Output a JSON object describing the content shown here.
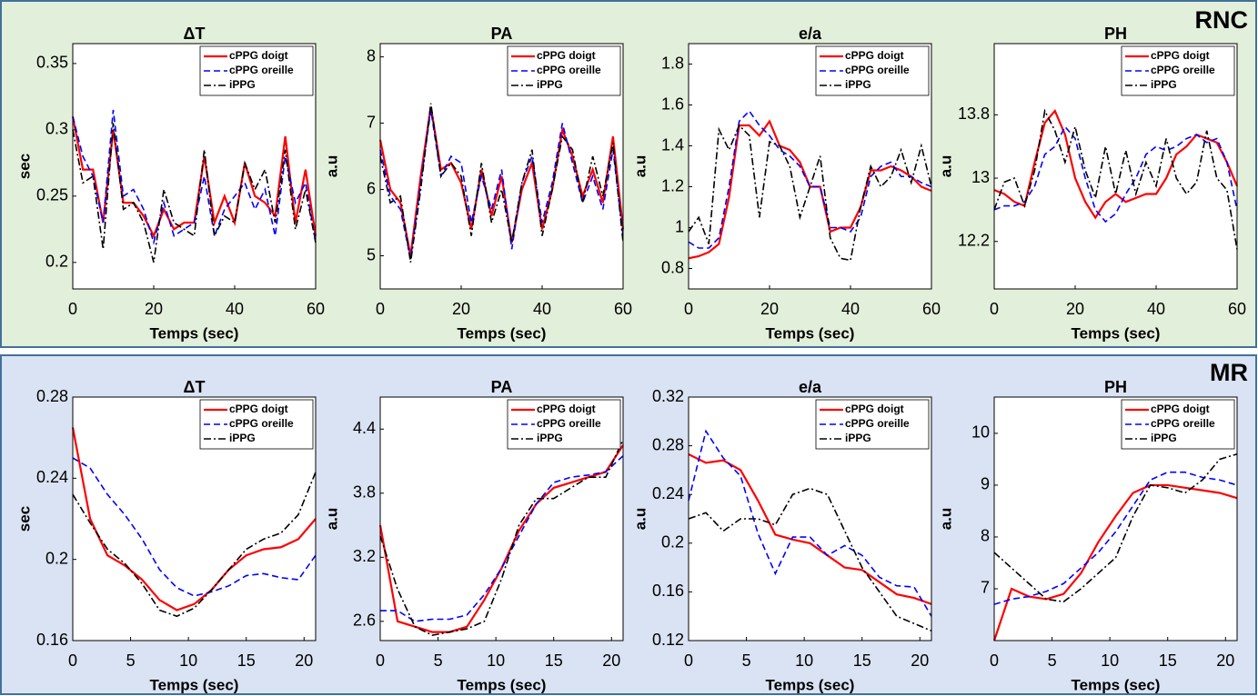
{
  "panels": [
    {
      "label": "RNC"
    },
    {
      "label": "MR"
    }
  ],
  "chart_data": [
    {
      "type": "line",
      "title": "ΔT",
      "x_label": "Temps (sec)",
      "y_label": "sec",
      "legend": "upper right",
      "x": [
        0,
        2.5,
        5,
        7.5,
        10,
        12.5,
        15,
        17.5,
        20,
        22.5,
        25,
        27.5,
        30,
        32.5,
        35,
        37.5,
        40,
        42.5,
        45,
        47.5,
        50,
        52.5,
        55,
        57.5,
        60
      ],
      "xlim": [
        0,
        60
      ],
      "xticks": [
        0,
        20,
        40,
        60
      ],
      "ylim": [
        0.18,
        0.365
      ],
      "yticks": [
        0.2,
        0.25,
        0.3,
        0.35
      ],
      "series": [
        {
          "name": "cPPG doigt",
          "color": "#ff0000",
          "style": "solid",
          "values": [
            0.31,
            0.27,
            0.27,
            0.23,
            0.3,
            0.245,
            0.245,
            0.235,
            0.22,
            0.24,
            0.225,
            0.23,
            0.23,
            0.28,
            0.23,
            0.25,
            0.23,
            0.275,
            0.25,
            0.245,
            0.235,
            0.295,
            0.23,
            0.27,
            0.22
          ]
        },
        {
          "name": "cPPG oreille",
          "color": "#0000ff",
          "style": "dashed",
          "values": [
            0.31,
            0.28,
            0.265,
            0.23,
            0.315,
            0.25,
            0.255,
            0.24,
            0.215,
            0.245,
            0.22,
            0.225,
            0.23,
            0.265,
            0.22,
            0.24,
            0.25,
            0.26,
            0.24,
            0.255,
            0.22,
            0.28,
            0.245,
            0.26,
            0.215
          ]
        },
        {
          "name": "iPPG",
          "color": "#000000",
          "style": "dashdot",
          "values": [
            0.3,
            0.26,
            0.265,
            0.21,
            0.305,
            0.24,
            0.245,
            0.23,
            0.2,
            0.255,
            0.23,
            0.225,
            0.22,
            0.285,
            0.22,
            0.235,
            0.23,
            0.275,
            0.255,
            0.27,
            0.23,
            0.285,
            0.225,
            0.255,
            0.215
          ]
        }
      ]
    },
    {
      "type": "line",
      "title": "PA",
      "x_label": "Temps (sec)",
      "y_label": "a.u",
      "legend": "upper right",
      "x": [
        0,
        2.5,
        5,
        7.5,
        10,
        12.5,
        15,
        17.5,
        20,
        22.5,
        25,
        27.5,
        30,
        32.5,
        35,
        37.5,
        40,
        42.5,
        45,
        47.5,
        50,
        52.5,
        55,
        57.5,
        60
      ],
      "xlim": [
        0,
        60
      ],
      "xticks": [
        0,
        20,
        40,
        60
      ],
      "ylim": [
        4.5,
        8.2
      ],
      "yticks": [
        5,
        6,
        7,
        8
      ],
      "series": [
        {
          "name": "cPPG doigt",
          "color": "#ff0000",
          "style": "solid",
          "values": [
            6.75,
            6.0,
            5.8,
            5.0,
            6.2,
            7.25,
            6.3,
            6.4,
            6.1,
            5.4,
            6.3,
            5.6,
            6.2,
            5.2,
            6.0,
            6.4,
            5.4,
            6.0,
            6.9,
            6.5,
            5.9,
            6.3,
            5.8,
            6.8,
            5.4
          ]
        },
        {
          "name": "cPPG oreille",
          "color": "#0000ff",
          "style": "dashed",
          "values": [
            6.6,
            5.9,
            5.7,
            4.95,
            6.1,
            7.2,
            6.2,
            6.5,
            6.4,
            5.5,
            6.2,
            5.7,
            6.3,
            5.1,
            6.1,
            6.5,
            5.5,
            6.1,
            7.0,
            6.4,
            5.8,
            6.2,
            5.7,
            6.6,
            5.3
          ]
        },
        {
          "name": "iPPG",
          "color": "#000000",
          "style": "dashdot",
          "values": [
            6.5,
            5.8,
            5.9,
            4.9,
            6.0,
            7.3,
            6.2,
            6.4,
            6.2,
            5.3,
            6.4,
            5.5,
            6.0,
            5.2,
            6.1,
            6.6,
            5.3,
            6.0,
            6.8,
            6.6,
            5.8,
            6.5,
            5.9,
            6.7,
            5.2
          ]
        }
      ]
    },
    {
      "type": "line",
      "title": "e/a",
      "x_label": "Temps (sec)",
      "y_label": "a.u",
      "legend": "upper right",
      "x": [
        0,
        2.5,
        5,
        7.5,
        10,
        12.5,
        15,
        17.5,
        20,
        22.5,
        25,
        27.5,
        30,
        32.5,
        35,
        37.5,
        40,
        42.5,
        45,
        47.5,
        50,
        52.5,
        55,
        57.5,
        60
      ],
      "xlim": [
        0,
        60
      ],
      "xticks": [
        0,
        20,
        40,
        60
      ],
      "ylim": [
        0.7,
        1.9
      ],
      "yticks": [
        0.8,
        1,
        1.2,
        1.4,
        1.6,
        1.8
      ],
      "series": [
        {
          "name": "cPPG doigt",
          "color": "#ff0000",
          "style": "solid",
          "values": [
            0.85,
            0.86,
            0.88,
            0.92,
            1.15,
            1.5,
            1.5,
            1.45,
            1.52,
            1.4,
            1.38,
            1.32,
            1.2,
            1.2,
            0.98,
            1.0,
            1.0,
            1.1,
            1.28,
            1.28,
            1.3,
            1.28,
            1.25,
            1.2,
            1.18
          ]
        },
        {
          "name": "cPPG oreille",
          "color": "#0000ff",
          "style": "dashed",
          "values": [
            0.93,
            0.9,
            0.9,
            0.95,
            1.2,
            1.52,
            1.57,
            1.5,
            1.45,
            1.38,
            1.35,
            1.3,
            1.2,
            1.2,
            1.0,
            1.0,
            0.98,
            1.05,
            1.25,
            1.3,
            1.32,
            1.25,
            1.25,
            1.22,
            1.2
          ]
        },
        {
          "name": "iPPG",
          "color": "#000000",
          "style": "dashdot",
          "values": [
            0.98,
            1.05,
            0.92,
            1.48,
            1.38,
            1.5,
            1.45,
            1.05,
            1.42,
            1.4,
            1.3,
            1.05,
            1.2,
            1.35,
            0.95,
            0.85,
            0.84,
            1.1,
            1.3,
            1.2,
            1.25,
            1.38,
            1.22,
            1.4,
            1.2
          ]
        }
      ]
    },
    {
      "type": "line",
      "title": "PH",
      "x_label": "Temps (sec)",
      "y_label": "a.u",
      "legend": "upper right",
      "x": [
        0,
        2.5,
        5,
        7.5,
        10,
        12.5,
        15,
        17.5,
        20,
        22.5,
        25,
        27.5,
        30,
        32.5,
        35,
        37.5,
        40,
        42.5,
        45,
        47.5,
        50,
        52.5,
        55,
        57.5,
        60
      ],
      "xlim": [
        0,
        60
      ],
      "xticks": [
        0,
        20,
        40,
        60
      ],
      "ylim": [
        11.6,
        14.7
      ],
      "yticks": [
        12.2,
        13,
        13.8
      ],
      "series": [
        {
          "name": "cPPG doigt",
          "color": "#ff0000",
          "style": "solid",
          "values": [
            12.85,
            12.8,
            12.7,
            12.65,
            13.2,
            13.7,
            13.85,
            13.55,
            13.0,
            12.7,
            12.5,
            12.7,
            12.8,
            12.7,
            12.75,
            12.8,
            12.8,
            13.0,
            13.3,
            13.4,
            13.55,
            13.5,
            13.45,
            13.2,
            12.9
          ]
        },
        {
          "name": "cPPG oreille",
          "color": "#0000ff",
          "style": "dashed",
          "values": [
            12.6,
            12.65,
            12.65,
            12.7,
            12.9,
            13.3,
            13.4,
            13.65,
            13.5,
            13.0,
            12.6,
            12.45,
            12.55,
            12.8,
            13.0,
            13.3,
            13.4,
            13.35,
            13.4,
            13.5,
            13.55,
            13.45,
            13.5,
            13.2,
            12.6
          ]
        },
        {
          "name": "iPPG",
          "color": "#000000",
          "style": "dashdot",
          "values": [
            12.6,
            12.95,
            13.0,
            12.65,
            13.1,
            13.85,
            13.6,
            13.2,
            13.65,
            13.1,
            12.75,
            13.4,
            12.8,
            13.35,
            12.8,
            13.2,
            12.9,
            13.5,
            13.0,
            12.8,
            12.95,
            13.6,
            13.0,
            12.85,
            12.1
          ]
        }
      ]
    },
    {
      "type": "line",
      "title": "ΔT",
      "x_label": "Temps (sec)",
      "y_label": "sec",
      "legend": "upper right",
      "x": [
        0,
        1.5,
        3,
        4.5,
        6,
        7.5,
        9,
        10.5,
        12,
        13.5,
        15,
        16.5,
        18,
        19.5,
        21
      ],
      "xlim": [
        0,
        21
      ],
      "xticks": [
        0,
        5,
        10,
        15,
        20
      ],
      "ylim": [
        0.16,
        0.28
      ],
      "yticks": [
        0.16,
        0.2,
        0.24,
        0.28
      ],
      "series": [
        {
          "name": "cPPG doigt",
          "color": "#ff0000",
          "style": "solid",
          "values": [
            0.265,
            0.22,
            0.202,
            0.197,
            0.19,
            0.18,
            0.175,
            0.178,
            0.185,
            0.195,
            0.202,
            0.205,
            0.206,
            0.21,
            0.22
          ]
        },
        {
          "name": "cPPG oreille",
          "color": "#0000ff",
          "style": "dashed",
          "values": [
            0.25,
            0.245,
            0.232,
            0.222,
            0.21,
            0.195,
            0.186,
            0.182,
            0.184,
            0.187,
            0.192,
            0.193,
            0.191,
            0.19,
            0.202
          ]
        },
        {
          "name": "iPPG",
          "color": "#000000",
          "style": "dashdot",
          "values": [
            0.232,
            0.218,
            0.205,
            0.198,
            0.188,
            0.175,
            0.172,
            0.176,
            0.185,
            0.195,
            0.205,
            0.21,
            0.213,
            0.222,
            0.243
          ]
        }
      ]
    },
    {
      "type": "line",
      "title": "PA",
      "x_label": "Temps (sec)",
      "y_label": "a.u",
      "legend": "upper right",
      "x": [
        0,
        1.5,
        3,
        4.5,
        6,
        7.5,
        9,
        10.5,
        12,
        13.5,
        15,
        16.5,
        18,
        19.5,
        21
      ],
      "xlim": [
        0,
        21
      ],
      "xticks": [
        0,
        5,
        10,
        15,
        20
      ],
      "ylim": [
        2.42,
        4.7
      ],
      "yticks": [
        2.6,
        3.2,
        3.8,
        4.4
      ],
      "series": [
        {
          "name": "cPPG doigt",
          "color": "#ff0000",
          "style": "solid",
          "values": [
            3.5,
            2.6,
            2.55,
            2.5,
            2.5,
            2.55,
            2.8,
            3.1,
            3.45,
            3.7,
            3.85,
            3.9,
            3.95,
            4.0,
            4.25
          ]
        },
        {
          "name": "cPPG oreille",
          "color": "#0000ff",
          "style": "dashed",
          "values": [
            2.7,
            2.7,
            2.6,
            2.62,
            2.62,
            2.66,
            2.85,
            3.1,
            3.4,
            3.7,
            3.9,
            3.95,
            3.97,
            4.0,
            4.15
          ]
        },
        {
          "name": "iPPG",
          "color": "#000000",
          "style": "dashdot",
          "values": [
            3.4,
            2.9,
            2.55,
            2.47,
            2.5,
            2.53,
            2.6,
            3.0,
            3.5,
            3.75,
            3.75,
            3.85,
            3.95,
            3.95,
            4.3
          ]
        }
      ]
    },
    {
      "type": "line",
      "title": "e/a",
      "x_label": "Temps (sec)",
      "y_label": "a.u",
      "legend": "upper right",
      "x": [
        0,
        1.5,
        3,
        4.5,
        6,
        7.5,
        9,
        10.5,
        12,
        13.5,
        15,
        16.5,
        18,
        19.5,
        21
      ],
      "xlim": [
        0,
        21
      ],
      "xticks": [
        0,
        5,
        10,
        15,
        20
      ],
      "ylim": [
        0.12,
        0.32
      ],
      "yticks": [
        0.12,
        0.16,
        0.2,
        0.24,
        0.28,
        0.32
      ],
      "series": [
        {
          "name": "cPPG doigt",
          "color": "#ff0000",
          "style": "solid",
          "values": [
            0.273,
            0.266,
            0.268,
            0.26,
            0.235,
            0.207,
            0.203,
            0.2,
            0.19,
            0.18,
            0.178,
            0.168,
            0.158,
            0.155,
            0.15
          ]
        },
        {
          "name": "cPPG oreille",
          "color": "#0000ff",
          "style": "dashed",
          "values": [
            0.235,
            0.292,
            0.27,
            0.255,
            0.208,
            0.175,
            0.205,
            0.205,
            0.19,
            0.198,
            0.19,
            0.172,
            0.165,
            0.164,
            0.14
          ]
        },
        {
          "name": "iPPG",
          "color": "#000000",
          "style": "dashdot",
          "values": [
            0.22,
            0.225,
            0.21,
            0.22,
            0.22,
            0.215,
            0.24,
            0.245,
            0.24,
            0.21,
            0.18,
            0.16,
            0.14,
            0.134,
            0.128
          ]
        }
      ]
    },
    {
      "type": "line",
      "title": "PH",
      "x_label": "Temps (sec)",
      "y_label": "a.u",
      "legend": "upper right",
      "x": [
        0,
        1.5,
        3,
        4.5,
        6,
        7.5,
        9,
        10.5,
        12,
        13.5,
        15,
        16.5,
        18,
        19.5,
        21
      ],
      "xlim": [
        0,
        21
      ],
      "xticks": [
        0,
        5,
        10,
        15,
        20
      ],
      "ylim": [
        6,
        10.7
      ],
      "yticks": [
        7,
        8,
        9,
        10
      ],
      "series": [
        {
          "name": "cPPG doigt",
          "color": "#ff0000",
          "style": "solid",
          "values": [
            6.0,
            7.0,
            6.85,
            6.8,
            6.9,
            7.3,
            7.9,
            8.4,
            8.85,
            9.0,
            9.0,
            8.95,
            8.9,
            8.85,
            8.75
          ]
        },
        {
          "name": "cPPG oreille",
          "color": "#0000ff",
          "style": "dashed",
          "values": [
            6.7,
            6.8,
            6.85,
            6.95,
            7.1,
            7.4,
            7.7,
            8.1,
            8.6,
            9.1,
            9.25,
            9.25,
            9.15,
            9.1,
            9.0
          ]
        },
        {
          "name": "iPPG",
          "color": "#000000",
          "style": "dashdot",
          "values": [
            7.7,
            7.4,
            7.1,
            6.8,
            6.75,
            7.0,
            7.3,
            7.6,
            8.4,
            9.0,
            8.95,
            8.85,
            9.1,
            9.5,
            9.6
          ]
        }
      ]
    }
  ]
}
